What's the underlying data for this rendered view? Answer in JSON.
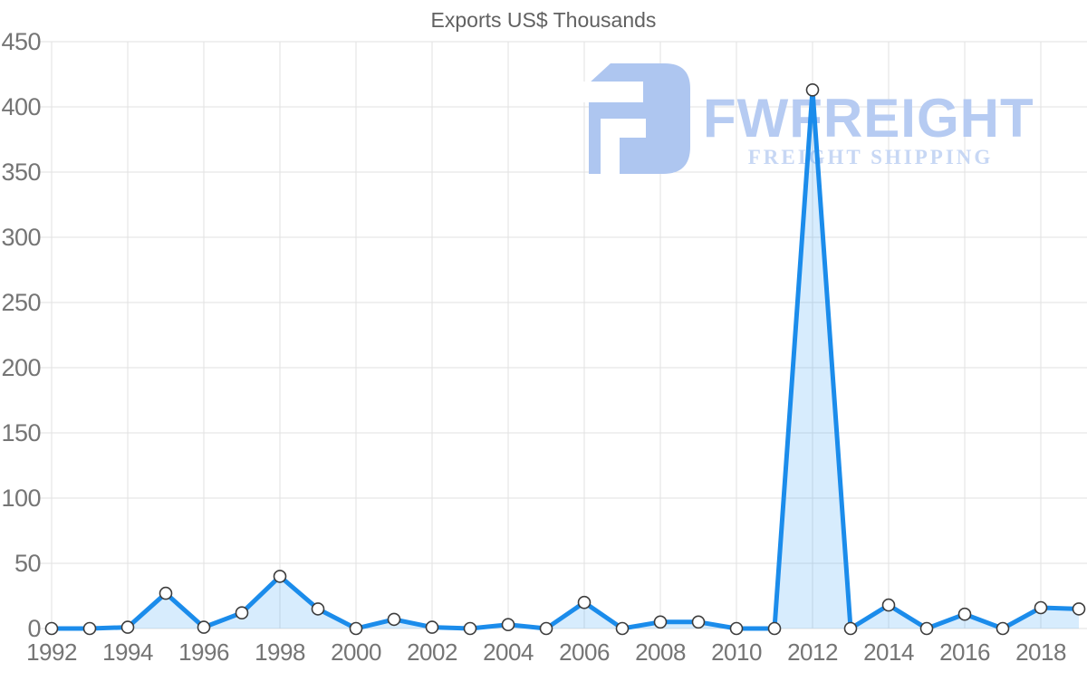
{
  "page": {
    "title": "Exports US$ Thousands"
  },
  "watermark": {
    "brand": "FWFREIGHT",
    "tagline": "FREIGHT SHIPPING"
  },
  "colors": {
    "line": "#1b8ceb",
    "area_fill": "rgba(33,150,243,0.18)",
    "marker_fill": "#ffffff",
    "marker_stroke": "#3c3c3c",
    "grid": "#e2e2e2",
    "axis_text": "#757575",
    "title_text": "#616161",
    "watermark_logo": "#aec6f0",
    "watermark_text": "#b6cbf2",
    "watermark_tagline": "#c7d7f4"
  },
  "chart_data": {
    "type": "area",
    "title": "Exports US$ Thousands",
    "x": [
      1992,
      1993,
      1994,
      1995,
      1996,
      1997,
      1998,
      1999,
      2000,
      2001,
      2002,
      2003,
      2004,
      2005,
      2006,
      2007,
      2008,
      2009,
      2010,
      2011,
      2012,
      2013,
      2014,
      2015,
      2016,
      2017,
      2018,
      2019
    ],
    "series": [
      {
        "name": "Exports US$ Thousands",
        "values": [
          0,
          0,
          1,
          27,
          1,
          12,
          40,
          15,
          0,
          7,
          1,
          0,
          3,
          0,
          20,
          0,
          5,
          5,
          0,
          0,
          413,
          0,
          18,
          0,
          11,
          0,
          16,
          15
        ]
      }
    ],
    "xlabel": "",
    "ylabel": "",
    "ylim": [
      0,
      450
    ],
    "yticks": [
      0,
      50,
      100,
      150,
      200,
      250,
      300,
      350,
      400,
      450
    ],
    "xticks": [
      1992,
      1994,
      1996,
      1998,
      2000,
      2002,
      2004,
      2006,
      2008,
      2010,
      2012,
      2014,
      2016,
      2018
    ],
    "grid": true,
    "legend": "none",
    "marker": "white-circle"
  }
}
